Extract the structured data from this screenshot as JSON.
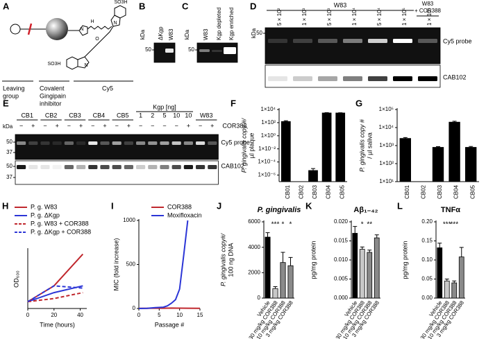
{
  "panel_A": {
    "label": "A",
    "atoms": [
      "SO3H",
      "N",
      "H",
      "O",
      "N",
      "N",
      "SO3H"
    ],
    "parts": [
      [
        "Leaving",
        "group"
      ],
      [
        "Covalent",
        "Gingipain",
        "inhibitor"
      ],
      [
        "Cy5"
      ]
    ]
  },
  "panel_B": {
    "label": "B",
    "kda": "kDa",
    "marker": 50,
    "lanes": [
      "ΔKgp",
      "W83"
    ]
  },
  "panel_C": {
    "label": "C",
    "kda": "kDa",
    "marker": 50,
    "lanes": [
      "W83",
      "Kgp depleted",
      "Kgp enriched"
    ]
  },
  "panel_D": {
    "label": "D",
    "kda": "kDa",
    "marker": 50,
    "group": "W83",
    "group2": [
      "W83",
      "+ COR388"
    ],
    "lanes": [
      "5 × 10²",
      "1 × 10³",
      "5 × 10³",
      "1 × 10⁴",
      "5 × 10⁴",
      "1 × 10⁵",
      "1 × 10⁵"
    ],
    "rows": [
      "Cy5 probe",
      "CAB102"
    ]
  },
  "panel_E": {
    "label": "E",
    "kda": "kDa",
    "groups": [
      "CB1",
      "CB2",
      "CB3",
      "CB4",
      "CB5"
    ],
    "kgp_label": "Kgp [ng]",
    "kgp_amounts": [
      1,
      2,
      5,
      10,
      10
    ],
    "w83": "W83",
    "treatment": "COR388",
    "signs": [
      "−",
      "+",
      "−",
      "+",
      "−",
      "+",
      "−",
      "+",
      "−",
      "+",
      "−",
      "−",
      "−",
      "−",
      "+",
      "−",
      "+"
    ],
    "markers_top": [
      50,
      37
    ],
    "markers_bottom": [
      50,
      37
    ],
    "rows": [
      "Cy5 probe",
      "CAB102"
    ]
  },
  "chart_data": [
    {
      "type": "bar",
      "panel": "F",
      "ylabel": [
        "P. gingivalis copy #/",
        "µl plaque"
      ],
      "log_scale": true,
      "categories": [
        "CB01",
        "CB02",
        "CB03",
        "CB04",
        "CB05"
      ],
      "values": [
        150,
        null,
        5e-06,
        3000,
        3000
      ],
      "errors": [
        50,
        null,
        5e-06,
        300,
        200
      ],
      "color": "#000000",
      "ylim": [
        1e-07,
        10000
      ],
      "yticks": [
        {
          "value": 10000,
          "label": "1×10⁴"
        },
        {
          "value": 100,
          "label": "1×10²"
        },
        {
          "value": 1,
          "label": "1×10⁰"
        },
        {
          "value": 0.01,
          "label": "1×10⁻²"
        },
        {
          "value": 0.0001,
          "label": "1×10⁻⁴"
        },
        {
          "value": 1e-06,
          "label": "1×10⁻⁶"
        }
      ]
    },
    {
      "type": "bar",
      "panel": "G",
      "ylabel": [
        "P. gingivalis copy #",
        "/ µl saliva"
      ],
      "log_scale": true,
      "categories": [
        "CB01",
        "CB02",
        "CB03",
        "CB04",
        "CB05"
      ],
      "values": [
        2500,
        null,
        800,
        20000,
        800
      ],
      "errors": [
        300,
        null,
        80,
        2500,
        100
      ],
      "color": "#000000",
      "ylim": [
        10,
        100000
      ],
      "yticks": [
        {
          "value": 100000,
          "label": "1×10⁵"
        },
        {
          "value": 10000,
          "label": "1×10⁴"
        },
        {
          "value": 1000,
          "label": "1×10³"
        },
        {
          "value": 100,
          "label": "1×10²"
        },
        {
          "value": 10,
          "label": "1×10¹"
        }
      ]
    },
    {
      "type": "line",
      "panel": "H",
      "xlabel": "Time (hours)",
      "ylabel": "OD₆₀₀",
      "xlim": [
        0,
        45
      ],
      "xticks": [
        0,
        20,
        40
      ],
      "ylim": [
        0,
        1.3
      ],
      "series": [
        {
          "name": "P. g. W83",
          "color": "#c0272d",
          "dashed": false,
          "x": [
            0,
            20,
            42
          ],
          "values": [
            0.15,
            0.5,
            1.2
          ]
        },
        {
          "name": "P. g. ΔKgp",
          "color": "#2b35d6",
          "dashed": false,
          "x": [
            0,
            20,
            42
          ],
          "values": [
            0.15,
            0.35,
            0.5
          ]
        },
        {
          "name": "P. g. W83 + COR388",
          "color": "#c0272d",
          "dashed": true,
          "x": [
            0,
            20,
            42
          ],
          "values": [
            0.15,
            0.22,
            0.35
          ]
        },
        {
          "name": "P. g. ΔKgp + COR388",
          "color": "#2b35d6",
          "dashed": true,
          "x": [
            0,
            20,
            42
          ],
          "values": [
            0.15,
            0.5,
            0.45
          ]
        }
      ]
    },
    {
      "type": "line",
      "panel": "I",
      "xlabel": "Passage #",
      "ylabel": "MIC (fold increase)",
      "xlim": [
        0,
        15
      ],
      "xticks": [
        0,
        5,
        10,
        15
      ],
      "ylim": [
        0,
        1000
      ],
      "yticks": [
        0,
        500,
        1000
      ],
      "series": [
        {
          "name": "COR388",
          "color": "#c0272d",
          "dashed": false,
          "x": [
            0,
            2,
            4,
            6,
            8,
            10,
            12,
            15
          ],
          "values": [
            2,
            2,
            4,
            3,
            5,
            4,
            3,
            2
          ]
        },
        {
          "name": "Moxifloxacin",
          "color": "#2b35d6",
          "dashed": false,
          "x": [
            0,
            2,
            4,
            6,
            7,
            8,
            9,
            10,
            11,
            12
          ],
          "values": [
            0,
            2,
            10,
            15,
            30,
            60,
            100,
            220,
            600,
            1000
          ]
        }
      ]
    },
    {
      "type": "bar",
      "panel": "J",
      "title": "P. gingivalis",
      "ylabel": [
        "P. gingivalis copy#/",
        "100 ng DNA"
      ],
      "categories": [
        "Vehicle",
        "30 mg/kg COR388",
        "10 mg/kg COR388",
        "3 mg/kg COR388"
      ],
      "values": [
        4800,
        750,
        2800,
        2550
      ],
      "errors": [
        350,
        150,
        800,
        650
      ],
      "annotations": [
        null,
        "***",
        "*",
        "*"
      ],
      "bar_colors": [
        "#000000",
        "#c8c8c8",
        "#8a8a8a",
        "#8a8a8a"
      ],
      "ylim": [
        0,
        6000
      ],
      "yticks": [
        0,
        2000,
        4000,
        6000
      ]
    },
    {
      "type": "bar",
      "panel": "K",
      "title": "Aβ₁₋₄₂",
      "ylabel": [
        "pg/mg protein"
      ],
      "categories": [
        "Vehicle",
        "30 mg/kg COR388",
        "10 mg/kg COR388",
        "3 mg/kg COR388"
      ],
      "values": [
        0.017,
        0.0128,
        0.012,
        0.0158
      ],
      "errors": [
        0.0018,
        0.0006,
        0.0006,
        0.0008
      ],
      "annotations": [
        null,
        "*",
        "**",
        null
      ],
      "bar_colors": [
        "#000000",
        "#c8c8c8",
        "#8a8a8a",
        "#8a8a8a"
      ],
      "ylim": [
        0,
        0.02
      ],
      "yticks": [
        {
          "value": 0,
          "label": "0.000"
        },
        {
          "value": 0.005,
          "label": "0.005"
        },
        {
          "value": 0.01,
          "label": "0.010"
        },
        {
          "value": 0.015,
          "label": "0.015"
        },
        {
          "value": 0.02,
          "label": "0.020"
        }
      ]
    },
    {
      "type": "bar",
      "panel": "L",
      "title": "TNFα",
      "ylabel": [
        "pg/mg protein"
      ],
      "categories": [
        "Vehicle",
        "30 mg/kg COR388",
        "10 mg/kg COR388",
        "3 mg/kg COR388"
      ],
      "values": [
        0.132,
        0.045,
        0.04,
        0.108
      ],
      "errors": [
        0.012,
        0.005,
        0.005,
        0.025
      ],
      "annotations": [
        null,
        "***",
        "***",
        null
      ],
      "bar_colors": [
        "#000000",
        "#c8c8c8",
        "#8a8a8a",
        "#8a8a8a"
      ],
      "ylim": [
        0,
        0.2
      ],
      "yticks": [
        {
          "value": 0,
          "label": "0.00"
        },
        {
          "value": 0.05,
          "label": "0.05"
        },
        {
          "value": 0.1,
          "label": "0.10"
        },
        {
          "value": 0.15,
          "label": "0.15"
        },
        {
          "value": 0.2,
          "label": "0.20"
        }
      ]
    }
  ]
}
